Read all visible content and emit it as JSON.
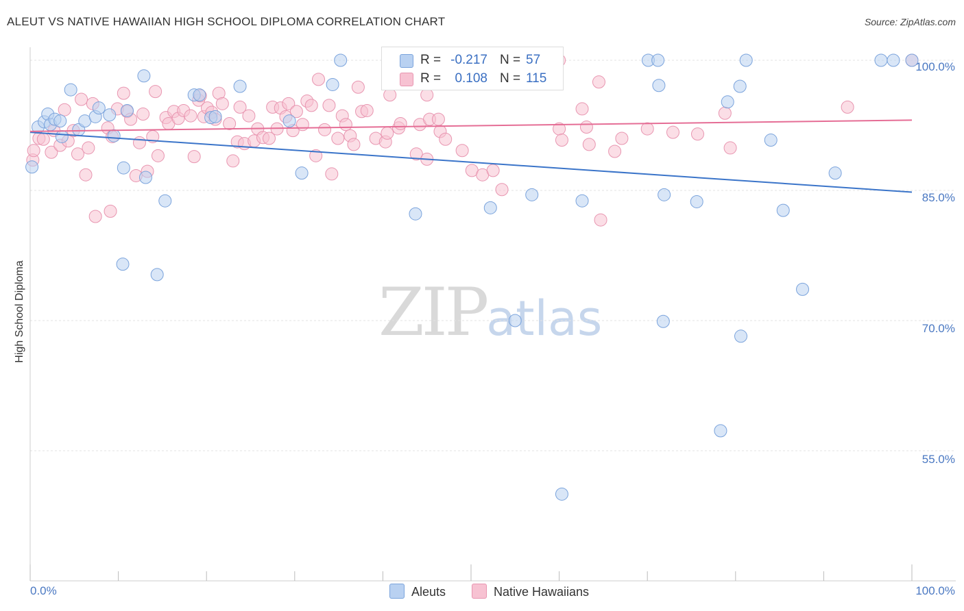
{
  "title": "ALEUT VS NATIVE HAWAIIAN HIGH SCHOOL DIPLOMA CORRELATION CHART",
  "source": "Source: ZipAtlas.com",
  "watermark": {
    "zip": "ZIP",
    "atlas": "atlas"
  },
  "legend": {
    "rows": [
      {
        "r_label": "R =",
        "r_value": "-0.217",
        "n_label": "N =",
        "n_value": "57"
      },
      {
        "r_label": "R =",
        "r_value": "0.108",
        "n_label": "N =",
        "n_value": "115"
      }
    ]
  },
  "colors": {
    "aleut_fill": "#b9d1f1",
    "aleut_stroke": "#7aa3dc",
    "aleut_line": "#3a74c9",
    "hawaiian_fill": "#f7c2d2",
    "hawaiian_stroke": "#e895b0",
    "hawaiian_line": "#e56d95",
    "grid": "#e3e3e3",
    "tick_label": "#4a78c2"
  },
  "chart_data": {
    "type": "scatter",
    "title": "ALEUT VS NATIVE HAWAIIAN HIGH SCHOOL DIPLOMA CORRELATION CHART",
    "xlabel": "",
    "ylabel": "High School Diploma",
    "x_tick_labels": [
      "0.0%",
      "100.0%"
    ],
    "y_tick_labels": [
      "100.0%",
      "85.0%",
      "70.0%",
      "55.0%"
    ],
    "y_ticks": [
      100,
      85,
      70,
      55
    ],
    "xlim": [
      0,
      100
    ],
    "ylim": [
      40,
      101.5
    ],
    "grid": true,
    "series": [
      {
        "name": "Aleuts",
        "r": -0.217,
        "n": 57,
        "trend": [
          [
            0,
            91.7
          ],
          [
            100,
            84.8
          ]
        ],
        "points": [
          [
            0.2,
            87.7
          ],
          [
            0.9,
            92.3
          ],
          [
            1.6,
            92.9
          ],
          [
            2,
            93.8
          ],
          [
            2.3,
            92.6
          ],
          [
            2.8,
            93.2
          ],
          [
            3.4,
            93
          ],
          [
            3.6,
            91.2
          ],
          [
            4.6,
            96.6
          ],
          [
            5.5,
            92
          ],
          [
            6.2,
            93
          ],
          [
            7.4,
            93.5
          ],
          [
            7.8,
            94.5
          ],
          [
            9,
            93.7
          ],
          [
            9.5,
            91.3
          ],
          [
            10.5,
            76.5
          ],
          [
            10.6,
            87.6
          ],
          [
            11,
            94.2
          ],
          [
            12.9,
            98.2
          ],
          [
            13.1,
            86.5
          ],
          [
            14.4,
            75.3
          ],
          [
            15.3,
            83.8
          ],
          [
            18.6,
            96
          ],
          [
            19.2,
            96
          ],
          [
            20.5,
            93.4
          ],
          [
            21,
            93.5
          ],
          [
            23.8,
            97
          ],
          [
            29.4,
            93
          ],
          [
            30.8,
            87
          ],
          [
            34.3,
            97.2
          ],
          [
            35.2,
            100
          ],
          [
            43.7,
            82.3
          ],
          [
            47.5,
            100
          ],
          [
            52.2,
            83
          ],
          [
            55,
            70
          ],
          [
            55.7,
            100
          ],
          [
            56.9,
            84.5
          ],
          [
            60.3,
            50
          ],
          [
            62.6,
            83.8
          ],
          [
            70.1,
            100
          ],
          [
            71.2,
            100
          ],
          [
            71.3,
            97.1
          ],
          [
            71.8,
            69.9
          ],
          [
            71.9,
            84.5
          ],
          [
            75.6,
            83.7
          ],
          [
            78.3,
            57.3
          ],
          [
            79.1,
            95.2
          ],
          [
            80.5,
            97
          ],
          [
            80.6,
            68.2
          ],
          [
            81.2,
            100
          ],
          [
            84,
            90.8
          ],
          [
            85.4,
            82.7
          ],
          [
            87.6,
            73.6
          ],
          [
            91.3,
            87
          ],
          [
            96.5,
            100
          ],
          [
            97.9,
            100
          ],
          [
            100,
            100
          ]
        ]
      },
      {
        "name": "Native Hawaiians",
        "r": 0.108,
        "n": 115,
        "trend": [
          [
            0,
            91.8
          ],
          [
            100,
            93.1
          ]
        ],
        "points": [
          [
            0.3,
            88.5
          ],
          [
            0.4,
            89.6
          ],
          [
            1,
            91
          ],
          [
            1.5,
            90.9
          ],
          [
            2.4,
            89.4
          ],
          [
            2.7,
            91.9
          ],
          [
            3.4,
            90.2
          ],
          [
            3.9,
            94.3
          ],
          [
            4.3,
            90.7
          ],
          [
            4.9,
            91.9
          ],
          [
            5.4,
            89.2
          ],
          [
            5.8,
            95.5
          ],
          [
            6.3,
            86.8
          ],
          [
            6.6,
            89.9
          ],
          [
            7.1,
            95
          ],
          [
            7.4,
            82
          ],
          [
            8.8,
            92.2
          ],
          [
            9.1,
            82.6
          ],
          [
            9.3,
            91.2
          ],
          [
            9.9,
            94.4
          ],
          [
            10.6,
            96.2
          ],
          [
            11,
            94.1
          ],
          [
            11.4,
            93.2
          ],
          [
            12,
            86.7
          ],
          [
            12.4,
            90.5
          ],
          [
            12.8,
            93.8
          ],
          [
            13.3,
            87.2
          ],
          [
            13.9,
            91.2
          ],
          [
            14.2,
            96.4
          ],
          [
            14.5,
            89
          ],
          [
            15.4,
            93.4
          ],
          [
            15.7,
            92.7
          ],
          [
            16.3,
            94.1
          ],
          [
            16.8,
            93.3
          ],
          [
            17.4,
            94.2
          ],
          [
            18.2,
            93.6
          ],
          [
            18.6,
            88.9
          ],
          [
            19.1,
            95.4
          ],
          [
            19.3,
            95.9
          ],
          [
            19.7,
            93.5
          ],
          [
            20.1,
            94.5
          ],
          [
            20.6,
            94
          ],
          [
            21,
            93.2
          ],
          [
            21.4,
            96.2
          ],
          [
            21.8,
            95
          ],
          [
            22.6,
            92.7
          ],
          [
            23,
            88.4
          ],
          [
            23.5,
            90.6
          ],
          [
            23.8,
            94.6
          ],
          [
            24.3,
            90.4
          ],
          [
            24.8,
            93.6
          ],
          [
            25.4,
            90.7
          ],
          [
            25.8,
            92.1
          ],
          [
            26.4,
            91.1
          ],
          [
            27.1,
            91
          ],
          [
            27.5,
            94.6
          ],
          [
            28,
            92.1
          ],
          [
            28.4,
            94.5
          ],
          [
            29,
            93.5
          ],
          [
            29.3,
            95
          ],
          [
            29.8,
            91.9
          ],
          [
            30.2,
            94.1
          ],
          [
            30.9,
            92.6
          ],
          [
            31.4,
            95.3
          ],
          [
            31.9,
            94.8
          ],
          [
            32.4,
            89
          ],
          [
            32.7,
            97.8
          ],
          [
            33.4,
            92
          ],
          [
            33.9,
            94.8
          ],
          [
            34.2,
            86.9
          ],
          [
            34.9,
            91
          ],
          [
            35.4,
            93.6
          ],
          [
            35.8,
            92.6
          ],
          [
            36.3,
            91.3
          ],
          [
            36.7,
            90.3
          ],
          [
            37.2,
            96.9
          ],
          [
            37.6,
            94.1
          ],
          [
            38.2,
            94.2
          ],
          [
            39.2,
            91
          ],
          [
            40.3,
            90.6
          ],
          [
            40.5,
            91.6
          ],
          [
            40.8,
            96
          ],
          [
            41.8,
            92.2
          ],
          [
            42,
            92.7
          ],
          [
            43.8,
            89.2
          ],
          [
            44.2,
            92.6
          ],
          [
            45,
            88.6
          ],
          [
            45.3,
            93.2
          ],
          [
            46.3,
            93.2
          ],
          [
            46.5,
            91.8
          ],
          [
            47.1,
            90.9
          ],
          [
            49,
            89.6
          ],
          [
            50.1,
            87.3
          ],
          [
            51.3,
            86.8
          ],
          [
            52.5,
            87.3
          ],
          [
            53.5,
            85.1
          ],
          [
            60,
            92.1
          ],
          [
            60.3,
            90.8
          ],
          [
            62.6,
            94.4
          ],
          [
            63.1,
            92.3
          ],
          [
            63.4,
            90.3
          ],
          [
            64.5,
            97.5
          ],
          [
            64.7,
            81.6
          ],
          [
            66.3,
            89.5
          ],
          [
            67.1,
            91
          ],
          [
            70,
            92.1
          ],
          [
            72.9,
            91.7
          ],
          [
            75.7,
            91.5
          ],
          [
            78.8,
            93.9
          ],
          [
            79.4,
            89.9
          ],
          [
            92.7,
            94.6
          ],
          [
            100,
            100
          ],
          [
            58,
            99
          ],
          [
            60,
            100
          ],
          [
            45,
            96
          ]
        ]
      }
    ]
  }
}
